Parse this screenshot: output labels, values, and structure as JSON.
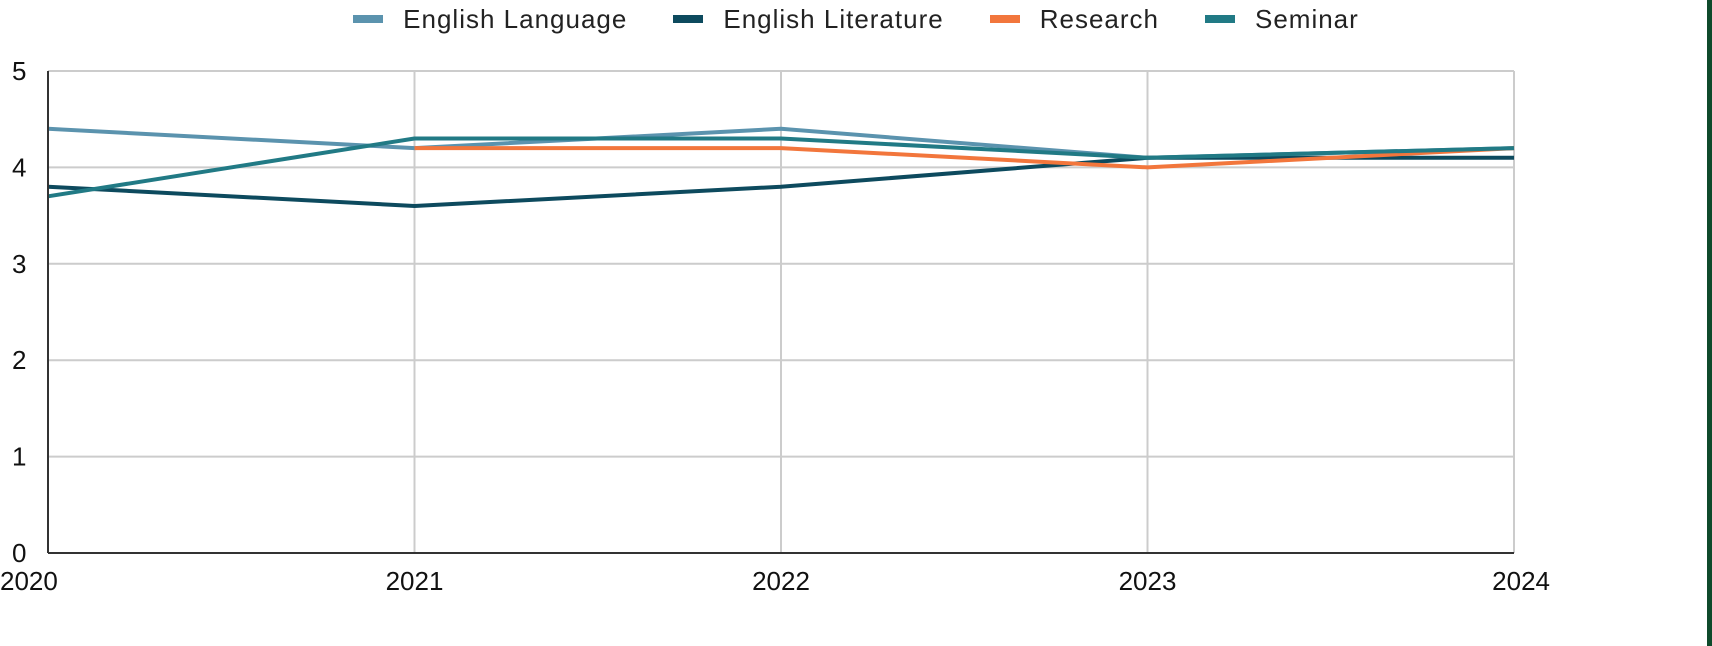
{
  "chart_data": {
    "type": "line",
    "title": "",
    "xlabel": "",
    "ylabel": "",
    "x": [
      "2020",
      "2021",
      "2022",
      "2023",
      "2024"
    ],
    "ylim": [
      0,
      5
    ],
    "yticks": [
      "0",
      "1",
      "2",
      "3",
      "4",
      "5"
    ],
    "grid": true,
    "legend_position": "top-center",
    "series": [
      {
        "name": "English Language",
        "color": "#5b93ae",
        "values": [
          4.4,
          4.2,
          4.4,
          4.1,
          4.2
        ]
      },
      {
        "name": "English Literature",
        "color": "#0d4a5e",
        "values": [
          3.8,
          3.6,
          3.8,
          4.1,
          4.1
        ]
      },
      {
        "name": "Research",
        "color": "#f2763c",
        "values": [
          null,
          4.2,
          4.2,
          4.0,
          4.2
        ]
      },
      {
        "name": "Seminar",
        "color": "#217a85",
        "values": [
          3.7,
          4.3,
          4.3,
          4.1,
          4.2
        ]
      }
    ]
  }
}
